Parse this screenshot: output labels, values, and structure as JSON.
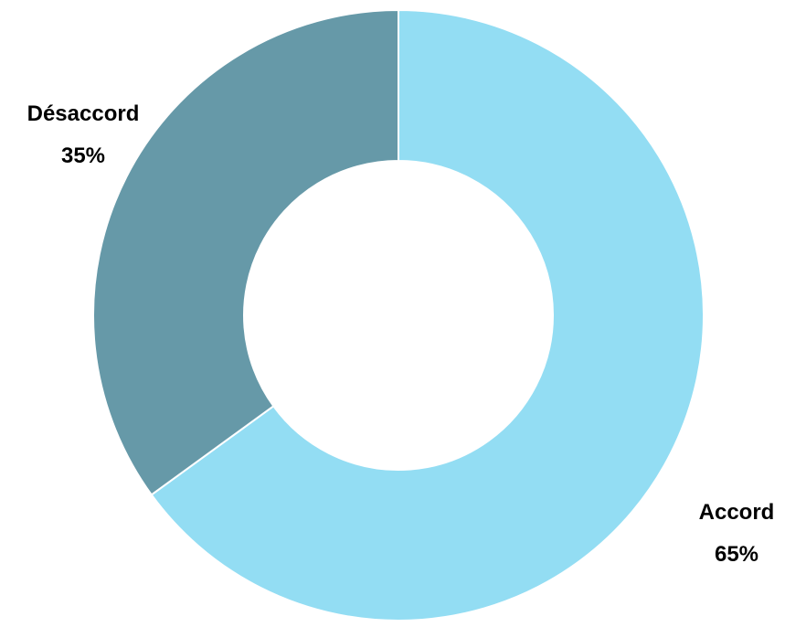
{
  "chart_data": {
    "type": "pie",
    "variant": "donut",
    "title": "",
    "slices": [
      {
        "label": "Accord",
        "value": 65,
        "value_label": "65%",
        "color": "#93DDF3"
      },
      {
        "label": "Désaccord",
        "value": 35,
        "value_label": "35%",
        "color": "#6699A8"
      }
    ],
    "legend": "none",
    "start_angle": "top, clockwise",
    "separator_color": "#ffffff"
  }
}
